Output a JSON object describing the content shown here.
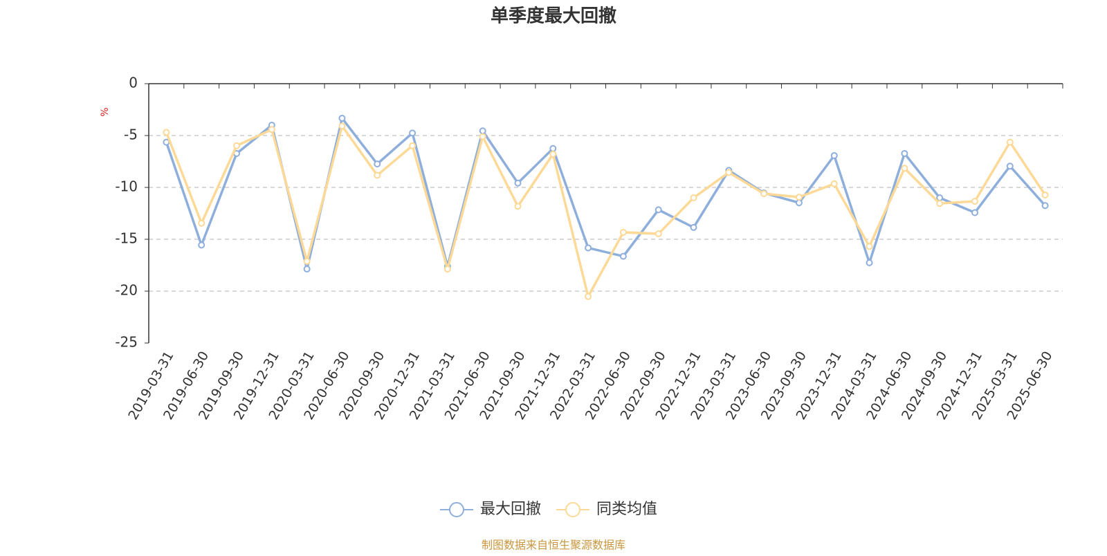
{
  "chart_data": {
    "type": "line",
    "title": "单季度最大回撤",
    "y_label": "%",
    "categories": [
      "2019-03-31",
      "2019-06-30",
      "2019-09-30",
      "2019-12-31",
      "2020-03-31",
      "2020-06-30",
      "2020-09-30",
      "2020-12-31",
      "2021-03-31",
      "2021-06-30",
      "2021-09-30",
      "2021-12-31",
      "2022-03-31",
      "2022-06-30",
      "2022-09-30",
      "2022-12-31",
      "2023-03-31",
      "2023-06-30",
      "2023-09-30",
      "2023-12-31",
      "2024-03-31",
      "2024-06-30",
      "2024-09-30",
      "2024-12-31",
      "2025-03-31",
      "2025-06-30"
    ],
    "series": [
      {
        "name": "最大回撤",
        "color": "#8eaedb",
        "values": [
          -5.64,
          -15.56,
          -6.73,
          -4.0,
          -17.87,
          -3.33,
          -7.74,
          -4.76,
          -17.6,
          -4.55,
          -9.58,
          -6.25,
          -15.83,
          -16.64,
          -12.16,
          -13.86,
          -8.36,
          -10.53,
          -11.48,
          -6.93,
          -17.26,
          -6.73,
          -11.0,
          -12.43,
          -7.95,
          -11.75
        ]
      },
      {
        "name": "同类均值",
        "color": "#fcd996",
        "values": [
          -4.69,
          -13.45,
          -5.98,
          -4.42,
          -17.12,
          -4.08,
          -8.83,
          -5.98,
          -17.87,
          -5.1,
          -11.82,
          -6.79,
          -20.52,
          -14.33,
          -14.47,
          -11.0,
          -8.56,
          -10.6,
          -10.94,
          -9.65,
          -15.69,
          -8.15,
          -11.55,
          -11.34,
          -5.64,
          -10.73
        ]
      }
    ],
    "ylim": [
      -25,
      0
    ],
    "yticks": [
      -25,
      -20,
      -15,
      -10,
      -5,
      0
    ],
    "grid": true,
    "legend": "bottom",
    "source": "制图数据来自恒生聚源数据库"
  }
}
